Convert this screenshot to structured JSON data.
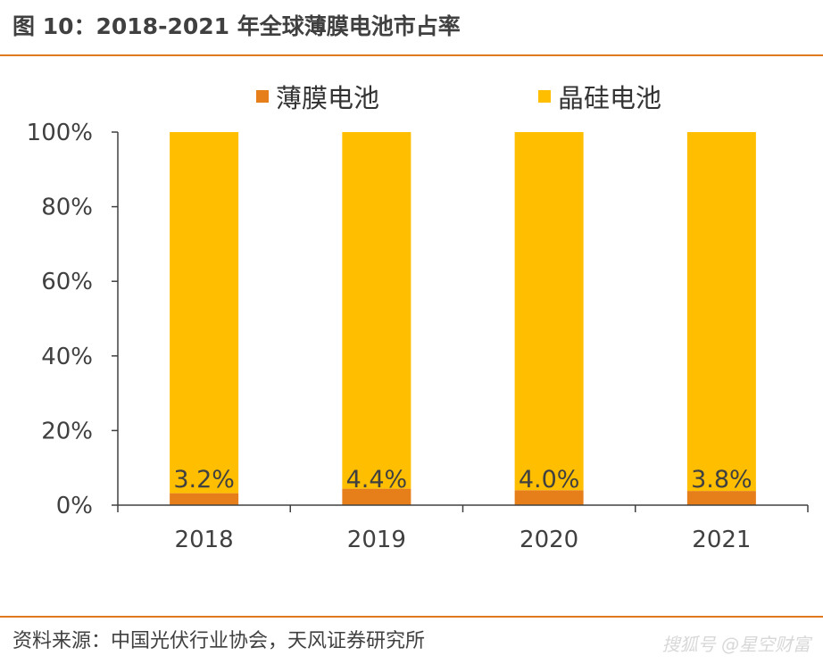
{
  "figure": {
    "title": "图 10：2018-2021 年全球薄膜电池市占率"
  },
  "chart_data": {
    "type": "bar",
    "stacked": true,
    "categories": [
      "2018",
      "2019",
      "2020",
      "2021"
    ],
    "series": [
      {
        "name": "薄膜电池",
        "values": [
          3.2,
          4.4,
          4.0,
          3.8
        ],
        "color": "#e67e1a"
      },
      {
        "name": "晶硅电池",
        "values": [
          96.8,
          95.6,
          96.0,
          96.2
        ],
        "color": "#ffbf00"
      }
    ],
    "data_labels": [
      "3.2%",
      "4.4%",
      "4.0%",
      "3.8%"
    ],
    "y_ticks": [
      "0%",
      "20%",
      "40%",
      "60%",
      "80%",
      "100%"
    ],
    "ylim": [
      0,
      100
    ],
    "grid": false,
    "legend_position": "top"
  },
  "footer": {
    "source": "资料来源：中国光伏行业协会，天风证券研究所",
    "watermark": "搜狐号 @星空财富"
  }
}
